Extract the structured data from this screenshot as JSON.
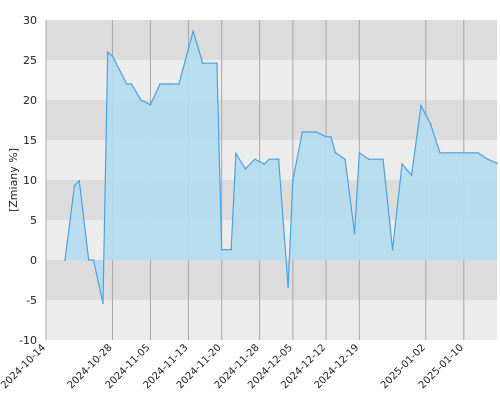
{
  "chart_data": {
    "type": "area",
    "title": "",
    "xlabel": "",
    "ylabel": "[Zmiany %]",
    "ylim": [
      -10,
      30
    ],
    "xlim": [
      "2024-10-14",
      "2025-01-17"
    ],
    "y_ticks": [
      "30",
      "25",
      "20",
      "15",
      "10",
      "5",
      "0",
      "-5",
      "-10"
    ],
    "x_ticks": [
      {
        "date": "2024-10-14",
        "label": "2024-10-14"
      },
      {
        "date": "2024-10-28",
        "label": "2024-10-28"
      },
      {
        "date": "2024-11-05",
        "label": "2024-11-05"
      },
      {
        "date": "2024-11-13",
        "label": "2024-11-13"
      },
      {
        "date": "2024-11-20",
        "label": "2024-11-20"
      },
      {
        "date": "2024-11-28",
        "label": "2024-11-28"
      },
      {
        "date": "2024-12-05",
        "label": "2024-12-05"
      },
      {
        "date": "2024-12-12",
        "label": "2024-12-12"
      },
      {
        "date": "2024-12-19",
        "label": "2024-12-19"
      },
      {
        "date": "2025-01-02",
        "label": "2025-01-02"
      },
      {
        "date": "2025-01-10",
        "label": "2025-01-10"
      }
    ],
    "grid": true,
    "band_colors": [
      "#dcdcdc",
      "#ececec"
    ],
    "line_color": "#4aa3df",
    "fill_color": "#b3dcef",
    "series": [
      {
        "values": [
          {
            "x": "2024-10-18",
            "y": 0
          },
          {
            "x": "2024-10-20",
            "y": 9.3
          },
          {
            "x": "2024-10-21",
            "y": 9.9
          },
          {
            "x": "2024-10-23",
            "y": 0
          },
          {
            "x": "2024-10-24",
            "y": 0
          },
          {
            "x": "2024-10-26",
            "y": -5.4
          },
          {
            "x": "2024-10-27",
            "y": 26
          },
          {
            "x": "2024-10-28",
            "y": 25.5
          },
          {
            "x": "2024-10-31",
            "y": 22
          },
          {
            "x": "2024-11-01",
            "y": 22
          },
          {
            "x": "2024-11-03",
            "y": 20
          },
          {
            "x": "2024-11-05",
            "y": 19.4
          },
          {
            "x": "2024-11-07",
            "y": 22
          },
          {
            "x": "2024-11-09",
            "y": 22
          },
          {
            "x": "2024-11-11",
            "y": 22
          },
          {
            "x": "2024-11-14",
            "y": 28.6
          },
          {
            "x": "2024-11-16",
            "y": 24.6
          },
          {
            "x": "2024-11-19",
            "y": 24.6
          },
          {
            "x": "2024-11-20",
            "y": 1.3
          },
          {
            "x": "2024-11-22",
            "y": 1.3
          },
          {
            "x": "2024-11-23",
            "y": 13.3
          },
          {
            "x": "2024-11-25",
            "y": 11.4
          },
          {
            "x": "2024-11-27",
            "y": 12.6
          },
          {
            "x": "2024-11-29",
            "y": 12
          },
          {
            "x": "2024-11-30",
            "y": 12.6
          },
          {
            "x": "2024-12-02",
            "y": 12.6
          },
          {
            "x": "2024-12-04",
            "y": -3.4
          },
          {
            "x": "2024-12-05",
            "y": 10
          },
          {
            "x": "2024-12-07",
            "y": 16
          },
          {
            "x": "2024-12-10",
            "y": 16
          },
          {
            "x": "2024-12-12",
            "y": 15.4
          },
          {
            "x": "2024-12-13",
            "y": 15.4
          },
          {
            "x": "2024-12-14",
            "y": 13.4
          },
          {
            "x": "2024-12-16",
            "y": 12.6
          },
          {
            "x": "2024-12-18",
            "y": 3.3
          },
          {
            "x": "2024-12-19",
            "y": 13.4
          },
          {
            "x": "2024-12-21",
            "y": 12.6
          },
          {
            "x": "2024-12-24",
            "y": 12.6
          },
          {
            "x": "2024-12-26",
            "y": 1.3
          },
          {
            "x": "2024-12-28",
            "y": 12
          },
          {
            "x": "2024-12-30",
            "y": 10.6
          },
          {
            "x": "2025-01-01",
            "y": 19.3
          },
          {
            "x": "2025-01-03",
            "y": 17
          },
          {
            "x": "2025-01-05",
            "y": 13.4
          },
          {
            "x": "2025-01-07",
            "y": 13.4
          },
          {
            "x": "2025-01-09",
            "y": 13.4
          },
          {
            "x": "2025-01-12",
            "y": 13.4
          },
          {
            "x": "2025-01-13",
            "y": 13.4
          },
          {
            "x": "2025-01-15",
            "y": 12.6
          },
          {
            "x": "2025-01-17",
            "y": 12.1
          }
        ]
      }
    ]
  }
}
